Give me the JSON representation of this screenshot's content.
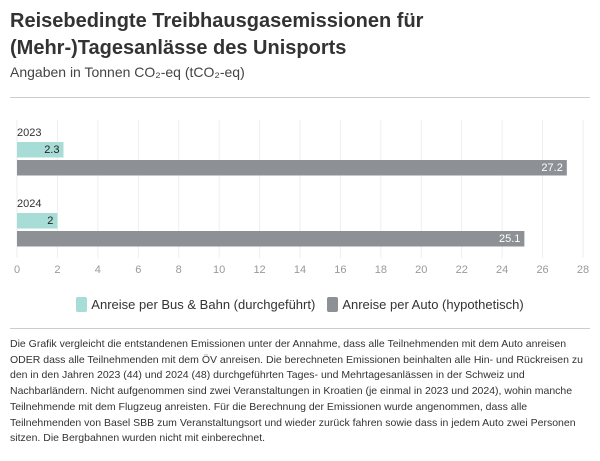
{
  "chart_data": {
    "type": "bar",
    "orientation": "horizontal",
    "title": "Reisebedingte Treibhausgasemissionen für (Mehr-)Tagesanlässe des Unisports",
    "subtitle": "Angaben in Tonnen CO₂-eq (tCO₂-eq)",
    "categories": [
      "2023",
      "2024"
    ],
    "series": [
      {
        "name": "Anreise per Bus & Bahn (durchgeführt)",
        "color": "#a8dcd6",
        "values": [
          2.3,
          2
        ]
      },
      {
        "name": "Anreise per Auto (hypothetisch)",
        "color": "#8d9095",
        "values": [
          27.2,
          25.1
        ]
      }
    ],
    "xlim": [
      0,
      28
    ],
    "xticks": [
      0,
      2,
      4,
      6,
      8,
      10,
      12,
      14,
      16,
      18,
      20,
      22,
      24,
      26,
      28
    ],
    "grid": true,
    "note": "Die Grafik vergleicht die entstandenen Emissionen unter der Annahme, dass alle Teilnehmenden mit dem Auto anreisen ODER dass alle Teilnehmenden mit dem ÖV anreisen. Die berechneten Emissionen beinhalten alle Hin- und Rückreisen zu den in den Jahren 2023 (44) und 2024 (48) durchgeführten Tages- und Mehrtagesanlässen in der Schweiz und Nachbarländern. Nicht aufgenommen sind zwei Veranstaltungen in Kroatien (je einmal in 2023 und 2024), wohin manche Teilnehmende mit dem Flugzeug anreisten. Für die Berechnung der Emissionen wurde angenommen, dass alle Teilnehmenden von Basel SBB zum Veranstaltungsort und wieder zurück fahren sowie dass in jedem Auto zwei Personen sitzen. Die Bergbahnen wurden nicht mit einberechnet."
  }
}
